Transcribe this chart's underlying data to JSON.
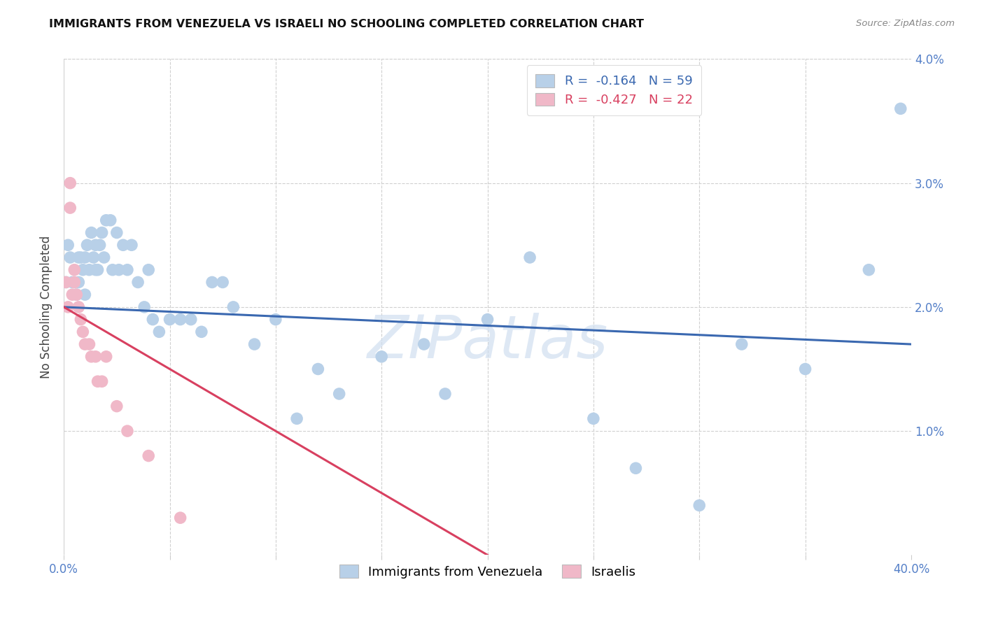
{
  "title": "IMMIGRANTS FROM VENEZUELA VS ISRAELI NO SCHOOLING COMPLETED CORRELATION CHART",
  "source": "Source: ZipAtlas.com",
  "ylabel": "No Schooling Completed",
  "xlim": [
    0.0,
    0.4
  ],
  "ylim": [
    0.0,
    0.04
  ],
  "blue_r": -0.164,
  "blue_n": 59,
  "pink_r": -0.427,
  "pink_n": 22,
  "blue_color": "#b8d0e8",
  "pink_color": "#f0b8c8",
  "blue_line_color": "#3a68b0",
  "pink_line_color": "#d84060",
  "watermark_color": "#d0dff0",
  "legend_blue_label": "Immigrants from Venezuela",
  "legend_pink_label": "Israelis",
  "grid_color": "#d0d0d0",
  "blue_x": [
    0.001,
    0.002,
    0.003,
    0.004,
    0.005,
    0.006,
    0.007,
    0.007,
    0.008,
    0.009,
    0.01,
    0.01,
    0.011,
    0.012,
    0.013,
    0.014,
    0.015,
    0.015,
    0.016,
    0.017,
    0.018,
    0.019,
    0.02,
    0.022,
    0.023,
    0.025,
    0.026,
    0.028,
    0.03,
    0.032,
    0.035,
    0.038,
    0.04,
    0.042,
    0.045,
    0.05,
    0.055,
    0.06,
    0.065,
    0.07,
    0.075,
    0.08,
    0.09,
    0.1,
    0.11,
    0.12,
    0.13,
    0.15,
    0.17,
    0.18,
    0.2,
    0.22,
    0.25,
    0.27,
    0.3,
    0.32,
    0.35,
    0.38,
    0.395
  ],
  "blue_y": [
    0.022,
    0.025,
    0.024,
    0.022,
    0.022,
    0.021,
    0.024,
    0.022,
    0.024,
    0.023,
    0.021,
    0.024,
    0.025,
    0.023,
    0.026,
    0.024,
    0.025,
    0.023,
    0.023,
    0.025,
    0.026,
    0.024,
    0.027,
    0.027,
    0.023,
    0.026,
    0.023,
    0.025,
    0.023,
    0.025,
    0.022,
    0.02,
    0.023,
    0.019,
    0.018,
    0.019,
    0.019,
    0.019,
    0.018,
    0.022,
    0.022,
    0.02,
    0.017,
    0.019,
    0.011,
    0.015,
    0.013,
    0.016,
    0.017,
    0.013,
    0.019,
    0.024,
    0.011,
    0.007,
    0.004,
    0.017,
    0.015,
    0.023,
    0.036
  ],
  "pink_x": [
    0.001,
    0.002,
    0.003,
    0.003,
    0.004,
    0.005,
    0.005,
    0.006,
    0.007,
    0.008,
    0.009,
    0.01,
    0.012,
    0.013,
    0.015,
    0.016,
    0.018,
    0.02,
    0.025,
    0.03,
    0.04,
    0.055
  ],
  "pink_y": [
    0.022,
    0.02,
    0.03,
    0.028,
    0.021,
    0.023,
    0.022,
    0.021,
    0.02,
    0.019,
    0.018,
    0.017,
    0.017,
    0.016,
    0.016,
    0.014,
    0.014,
    0.016,
    0.012,
    0.01,
    0.008,
    0.003
  ]
}
